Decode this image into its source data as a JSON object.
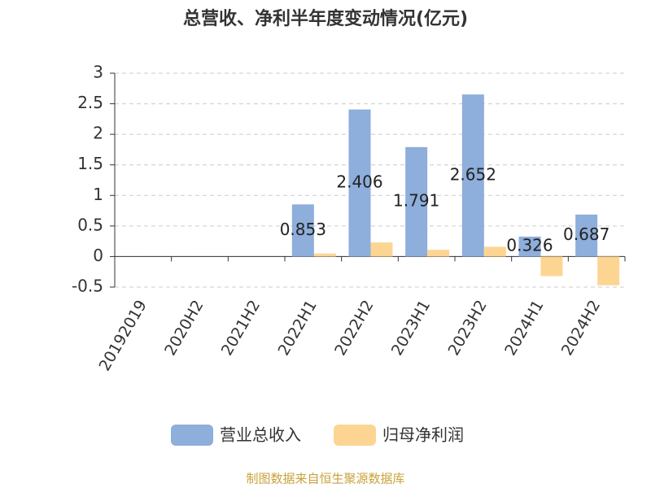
{
  "chart_data": {
    "type": "bar",
    "title": "总营收、净利半年度变动情况(亿元)",
    "categories": [
      "20192019",
      "2020H2",
      "2021H2",
      "2022H1",
      "2022H2",
      "2023H1",
      "2023H2",
      "2024H1",
      "2024H2"
    ],
    "series": [
      {
        "name": "营业总收入",
        "color": "#8eaedb",
        "values": [
          null,
          null,
          null,
          0.853,
          2.406,
          1.791,
          2.652,
          0.326,
          0.687
        ]
      },
      {
        "name": "归母净利润",
        "color": "#fdd593",
        "values": [
          null,
          null,
          null,
          0.05,
          0.23,
          0.11,
          0.16,
          -0.32,
          -0.47
        ]
      }
    ],
    "ylim": [
      -0.5,
      3
    ],
    "yticks": [
      -0.5,
      0,
      0.5,
      1,
      1.5,
      2,
      2.5,
      3
    ],
    "grid": true,
    "data_labels_series": 0,
    "source": "制图数据来自恒生聚源数据库"
  }
}
